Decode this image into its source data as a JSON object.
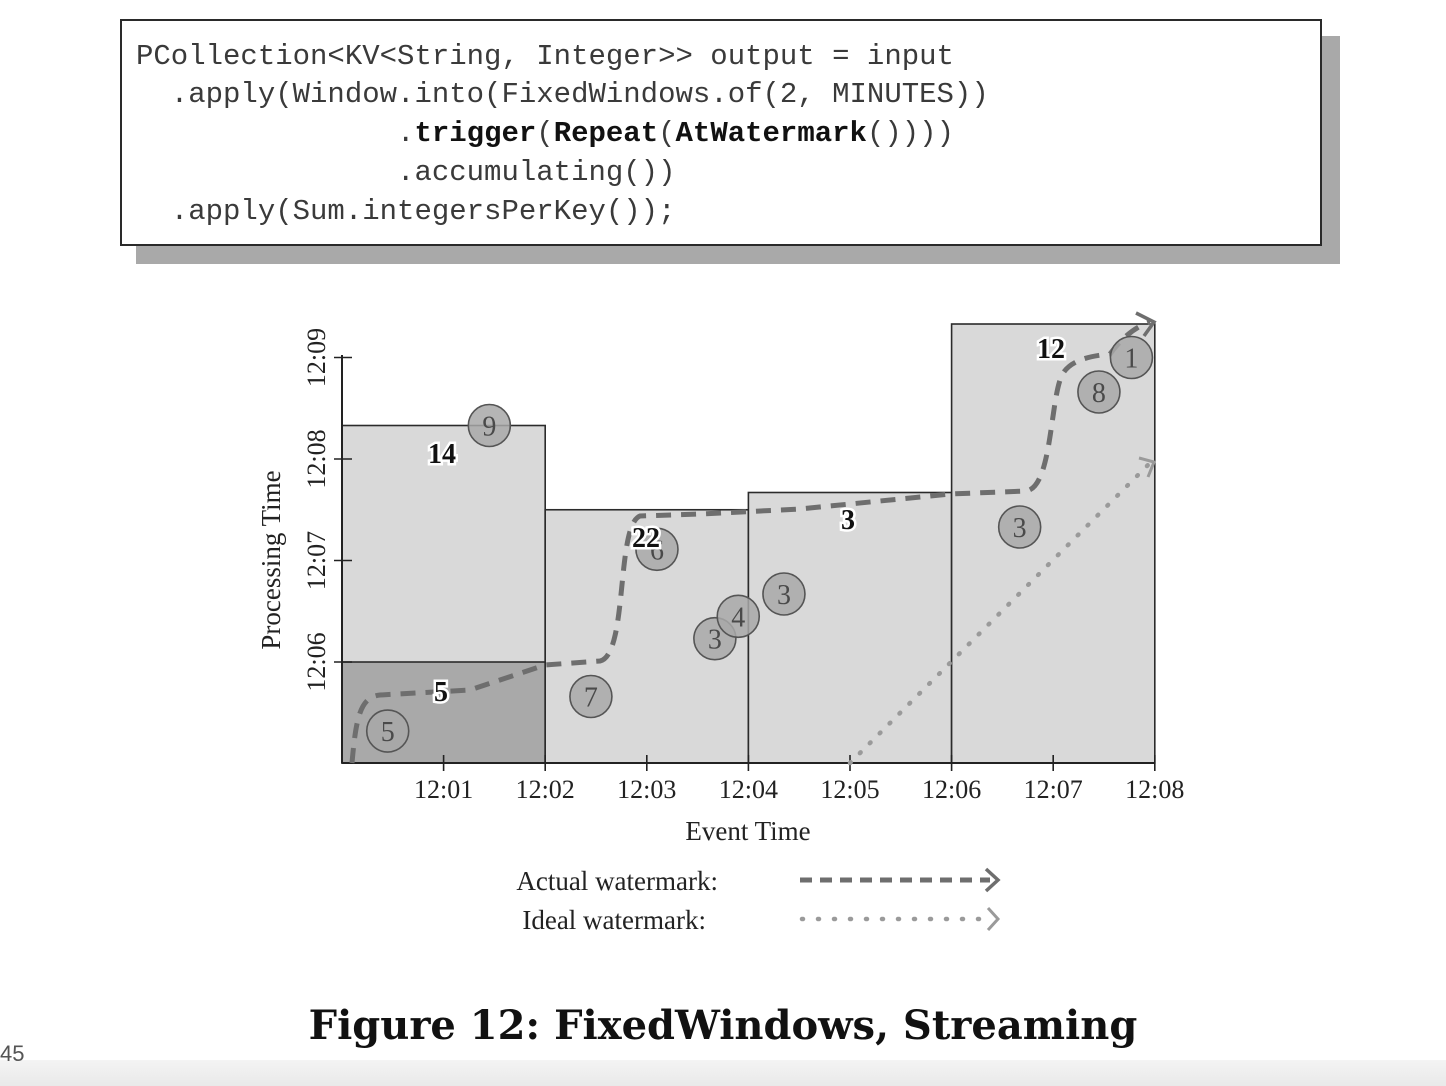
{
  "code": {
    "line1": "PCollection<KV<String, Integer>> output = input",
    "line2_pre": "  .apply(Window.into(FixedWindows.of(2, MINUTES))",
    "line3_dot": "               .",
    "line3_trigger": "trigger",
    "line3_p1": "(",
    "line3_repeat": "Repeat",
    "line3_p2": "(",
    "line3_atw": "AtWatermark",
    "line3_end": "()))) ",
    "line4": "               .accumulating())",
    "line5": "  .apply(Sum.integersPerKey());"
  },
  "page_number": "45",
  "caption": "Figure 12:  FixedWindows, Streaming",
  "chart_data": {
    "type": "scatter",
    "title": "",
    "xlabel": "Event Time",
    "ylabel": "Processing Time",
    "x_ticks": [
      "12:01",
      "12:02",
      "12:03",
      "12:04",
      "12:05",
      "12:06",
      "12:07",
      "12:08"
    ],
    "y_ticks": [
      "12:06",
      "12:07",
      "12:08",
      "12:09"
    ],
    "windows": [
      {
        "start": "12:00",
        "end": "12:02",
        "pane_time": "12:06",
        "sum": "5"
      },
      {
        "start": "12:00",
        "end": "12:02",
        "pane_time": "12:08.33",
        "sum": "14"
      },
      {
        "start": "12:02",
        "end": "12:04",
        "pane_time": "12:07.5",
        "sum": "22"
      },
      {
        "start": "12:04",
        "end": "12:06",
        "pane_time": "12:07.67",
        "sum": "3"
      },
      {
        "start": "12:06",
        "end": "12:08",
        "pane_time": "12:09.33",
        "sum": "12"
      }
    ],
    "points": [
      {
        "x": "12:00.45",
        "y": "12:05.32",
        "label": "5"
      },
      {
        "x": "12:01.45",
        "y": "12:08.33",
        "label": "9"
      },
      {
        "x": "12:02.45",
        "y": "12:05.66",
        "label": "7"
      },
      {
        "x": "12:03.1",
        "y": "12:07.11",
        "label": "6"
      },
      {
        "x": "12:03.67",
        "y": "12:06.23",
        "label": "3"
      },
      {
        "x": "12:03.9",
        "y": "12:06.45",
        "label": "4"
      },
      {
        "x": "12:04.35",
        "y": "12:06.67",
        "label": "3"
      },
      {
        "x": "12:06.67",
        "y": "12:07.33",
        "label": "3"
      },
      {
        "x": "12:07.45",
        "y": "12:08.66",
        "label": "8"
      },
      {
        "x": "12:07.77",
        "y": "12:09.0",
        "label": "1"
      }
    ],
    "legend": [
      {
        "name": "Actual watermark:",
        "style": "dashed"
      },
      {
        "name": "Ideal watermark:",
        "style": "dotted"
      }
    ],
    "colors": {
      "pane_fill": "#d9d9d9",
      "first_pane_fill": "#a9a9a9",
      "watermark": "#6e6e6e",
      "ideal": "#9a9a9a"
    }
  }
}
